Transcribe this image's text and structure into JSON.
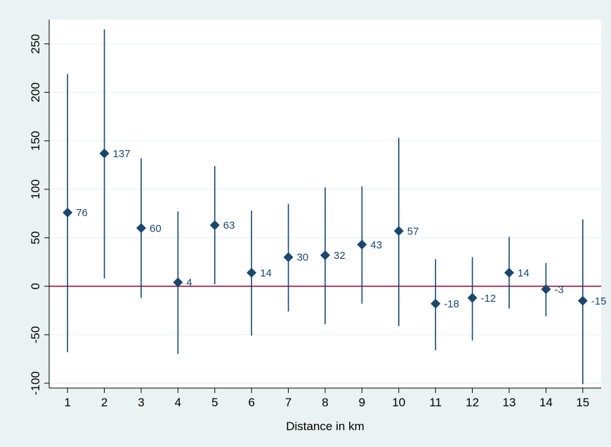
{
  "chart_data": {
    "type": "scatter",
    "title": "",
    "xlabel": "Distance in km",
    "ylabel": "",
    "x": [
      1,
      2,
      3,
      4,
      5,
      6,
      7,
      8,
      9,
      10,
      11,
      12,
      13,
      14,
      15
    ],
    "series": [
      {
        "values": [
          76,
          137,
          60,
          4,
          63,
          14,
          30,
          32,
          43,
          57,
          -18,
          -12,
          14,
          -3,
          -15
        ],
        "labels": [
          "76",
          "137",
          "60",
          "4",
          "63",
          "14",
          "30",
          "32",
          "43",
          "57",
          "-18",
          "-12",
          "14",
          "-3",
          "-15"
        ],
        "ci_lower": [
          -68,
          8,
          -12,
          -70,
          2,
          -51,
          -26,
          -39,
          -18,
          -41,
          -66,
          -56,
          -23,
          -31,
          -101
        ],
        "ci_upper": [
          219,
          265,
          132,
          77,
          124,
          78,
          85,
          102,
          103,
          153,
          28,
          30,
          51,
          24,
          69
        ]
      }
    ],
    "x_ticks": [
      "1",
      "2",
      "3",
      "4",
      "5",
      "6",
      "7",
      "8",
      "9",
      "10",
      "11",
      "12",
      "13",
      "14",
      "15"
    ],
    "y_ticks": [
      "-100",
      "-50",
      "0",
      "50",
      "100",
      "150",
      "200",
      "250"
    ],
    "y_tick_values": [
      -100,
      -50,
      0,
      50,
      100,
      150,
      200,
      250
    ],
    "xlim": [
      0.5,
      15.5
    ],
    "ylim": [
      -105,
      275
    ],
    "reference_line": {
      "y": 0,
      "color": "#a0173e"
    },
    "grid": "horizontal",
    "colors": {
      "marker": "#1a476f",
      "ci": "#1a476f",
      "background": "#eaf2f3",
      "plot_background": "#ffffff",
      "grid": "#eaf2f3"
    }
  }
}
